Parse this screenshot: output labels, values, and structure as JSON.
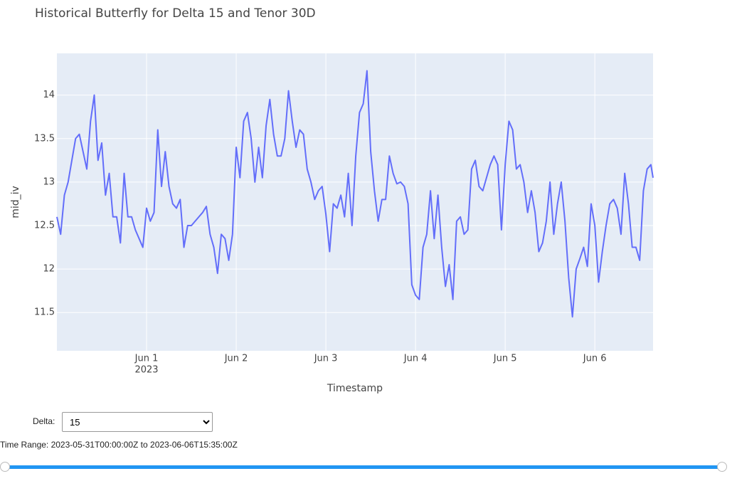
{
  "chart_data": {
    "type": "line",
    "title": "Historical Butterfly for Delta 15 and Tenor 30D",
    "x_label": "Timestamp",
    "y_label": "mid_iv",
    "color": "#636efa",
    "grid": true,
    "xlim": [
      "2023-05-31T00:00",
      "2023-06-06T15:35"
    ],
    "xticks": [
      {
        "value": "2023-06-01T00:00",
        "label": "Jun 1"
      },
      {
        "value": "2023-06-02T00:00",
        "label": "Jun 2"
      },
      {
        "value": "2023-06-03T00:00",
        "label": "Jun 3"
      },
      {
        "value": "2023-06-04T00:00",
        "label": "Jun 4"
      },
      {
        "value": "2023-06-05T00:00",
        "label": "Jun 5"
      },
      {
        "value": "2023-06-06T00:00",
        "label": "Jun 6"
      }
    ],
    "xtick_year": "2023",
    "ylim": [
      11.06,
      14.48
    ],
    "yticks": [
      11.5,
      12,
      12.5,
      13,
      13.5,
      14
    ],
    "x": [
      "2023-05-31T00:00",
      "2023-05-31T01:00",
      "2023-05-31T02:00",
      "2023-05-31T03:00",
      "2023-05-31T04:00",
      "2023-05-31T05:00",
      "2023-05-31T06:00",
      "2023-05-31T07:00",
      "2023-05-31T08:00",
      "2023-05-31T09:00",
      "2023-05-31T10:00",
      "2023-05-31T11:00",
      "2023-05-31T12:00",
      "2023-05-31T13:00",
      "2023-05-31T14:00",
      "2023-05-31T15:00",
      "2023-05-31T16:00",
      "2023-05-31T17:00",
      "2023-05-31T18:00",
      "2023-05-31T19:00",
      "2023-05-31T20:00",
      "2023-05-31T21:00",
      "2023-05-31T22:00",
      "2023-05-31T23:00",
      "2023-06-01T00:00",
      "2023-06-01T01:00",
      "2023-06-01T02:00",
      "2023-06-01T03:00",
      "2023-06-01T04:00",
      "2023-06-01T05:00",
      "2023-06-01T06:00",
      "2023-06-01T07:00",
      "2023-06-01T08:00",
      "2023-06-01T09:00",
      "2023-06-01T10:00",
      "2023-06-01T11:00",
      "2023-06-01T12:00",
      "2023-06-01T13:00",
      "2023-06-01T14:00",
      "2023-06-01T15:00",
      "2023-06-01T16:00",
      "2023-06-01T17:00",
      "2023-06-01T18:00",
      "2023-06-01T19:00",
      "2023-06-01T20:00",
      "2023-06-01T21:00",
      "2023-06-01T22:00",
      "2023-06-01T23:00",
      "2023-06-02T00:00",
      "2023-06-02T01:00",
      "2023-06-02T02:00",
      "2023-06-02T03:00",
      "2023-06-02T04:00",
      "2023-06-02T05:00",
      "2023-06-02T06:00",
      "2023-06-02T07:00",
      "2023-06-02T08:00",
      "2023-06-02T09:00",
      "2023-06-02T10:00",
      "2023-06-02T11:00",
      "2023-06-02T12:00",
      "2023-06-02T13:00",
      "2023-06-02T14:00",
      "2023-06-02T15:00",
      "2023-06-02T16:00",
      "2023-06-02T17:00",
      "2023-06-02T18:00",
      "2023-06-02T19:00",
      "2023-06-02T20:00",
      "2023-06-02T21:00",
      "2023-06-02T22:00",
      "2023-06-02T23:00",
      "2023-06-03T00:00",
      "2023-06-03T01:00",
      "2023-06-03T02:00",
      "2023-06-03T03:00",
      "2023-06-03T04:00",
      "2023-06-03T05:00",
      "2023-06-03T06:00",
      "2023-06-03T07:00",
      "2023-06-03T08:00",
      "2023-06-03T09:00",
      "2023-06-03T10:00",
      "2023-06-03T11:00",
      "2023-06-03T12:00",
      "2023-06-03T13:00",
      "2023-06-03T14:00",
      "2023-06-03T15:00",
      "2023-06-03T16:00",
      "2023-06-03T17:00",
      "2023-06-03T18:00",
      "2023-06-03T19:00",
      "2023-06-03T20:00",
      "2023-06-03T21:00",
      "2023-06-03T22:00",
      "2023-06-03T23:00",
      "2023-06-04T00:00",
      "2023-06-04T01:00",
      "2023-06-04T02:00",
      "2023-06-04T03:00",
      "2023-06-04T04:00",
      "2023-06-04T05:00",
      "2023-06-04T06:00",
      "2023-06-04T07:00",
      "2023-06-04T08:00",
      "2023-06-04T09:00",
      "2023-06-04T10:00",
      "2023-06-04T11:00",
      "2023-06-04T12:00",
      "2023-06-04T13:00",
      "2023-06-04T14:00",
      "2023-06-04T15:00",
      "2023-06-04T16:00",
      "2023-06-04T17:00",
      "2023-06-04T18:00",
      "2023-06-04T19:00",
      "2023-06-04T20:00",
      "2023-06-04T21:00",
      "2023-06-04T22:00",
      "2023-06-04T23:00",
      "2023-06-05T00:00",
      "2023-06-05T01:00",
      "2023-06-05T02:00",
      "2023-06-05T03:00",
      "2023-06-05T04:00",
      "2023-06-05T05:00",
      "2023-06-05T06:00",
      "2023-06-05T07:00",
      "2023-06-05T08:00",
      "2023-06-05T09:00",
      "2023-06-05T10:00",
      "2023-06-05T11:00",
      "2023-06-05T12:00",
      "2023-06-05T13:00",
      "2023-06-05T14:00",
      "2023-06-05T15:00",
      "2023-06-05T16:00",
      "2023-06-05T17:00",
      "2023-06-05T18:00",
      "2023-06-05T19:00",
      "2023-06-05T20:00",
      "2023-06-05T21:00",
      "2023-06-05T22:00",
      "2023-06-05T23:00",
      "2023-06-06T00:00",
      "2023-06-06T01:00",
      "2023-06-06T02:00",
      "2023-06-06T03:00",
      "2023-06-06T04:00",
      "2023-06-06T05:00",
      "2023-06-06T06:00",
      "2023-06-06T07:00",
      "2023-06-06T08:00",
      "2023-06-06T09:00",
      "2023-06-06T10:00",
      "2023-06-06T11:00",
      "2023-06-06T12:00",
      "2023-06-06T13:00",
      "2023-06-06T14:00",
      "2023-06-06T15:00",
      "2023-06-06T15:35"
    ],
    "values": [
      12.6,
      12.4,
      12.85,
      13.0,
      13.25,
      13.5,
      13.55,
      13.35,
      13.15,
      13.7,
      14.0,
      13.25,
      13.45,
      12.85,
      13.1,
      12.6,
      12.6,
      12.3,
      13.1,
      12.6,
      12.6,
      12.45,
      12.35,
      12.25,
      12.7,
      12.55,
      12.65,
      13.6,
      12.95,
      13.35,
      12.95,
      12.75,
      12.7,
      12.8,
      12.25,
      12.5,
      12.5,
      12.55,
      12.6,
      12.65,
      12.72,
      12.4,
      12.25,
      11.95,
      12.4,
      12.35,
      12.1,
      12.4,
      13.4,
      13.05,
      13.7,
      13.8,
      13.5,
      13.0,
      13.4,
      13.05,
      13.65,
      13.95,
      13.55,
      13.3,
      13.3,
      13.5,
      14.05,
      13.7,
      13.4,
      13.6,
      13.55,
      13.15,
      13.0,
      12.8,
      12.9,
      12.95,
      12.63,
      12.2,
      12.75,
      12.7,
      12.85,
      12.6,
      13.1,
      12.5,
      13.3,
      13.8,
      13.9,
      14.28,
      13.35,
      12.9,
      12.55,
      12.8,
      12.8,
      13.3,
      13.1,
      12.98,
      13.0,
      12.95,
      12.75,
      11.82,
      11.7,
      11.65,
      12.25,
      12.4,
      12.9,
      12.35,
      12.85,
      12.25,
      11.8,
      12.05,
      11.65,
      12.55,
      12.6,
      12.4,
      12.45,
      13.15,
      13.25,
      12.95,
      12.9,
      13.05,
      13.2,
      13.3,
      13.2,
      12.45,
      13.2,
      13.7,
      13.6,
      13.15,
      13.2,
      13.0,
      12.65,
      12.9,
      12.65,
      12.2,
      12.3,
      12.55,
      13.0,
      12.4,
      12.75,
      13.0,
      12.55,
      11.9,
      11.45,
      12.0,
      12.12,
      12.25,
      12.03,
      12.75,
      12.5,
      11.85,
      12.2,
      12.5,
      12.75,
      12.8,
      12.7,
      12.4,
      13.1,
      12.75,
      12.25,
      12.25,
      12.1,
      12.9,
      13.15,
      13.2,
      13.05
    ]
  },
  "controls": {
    "delta_label": "Delta:",
    "delta_value": "15",
    "time_range": "Time Range: 2023-05-31T00:00:00Z to 2023-06-06T15:35:00Z"
  }
}
